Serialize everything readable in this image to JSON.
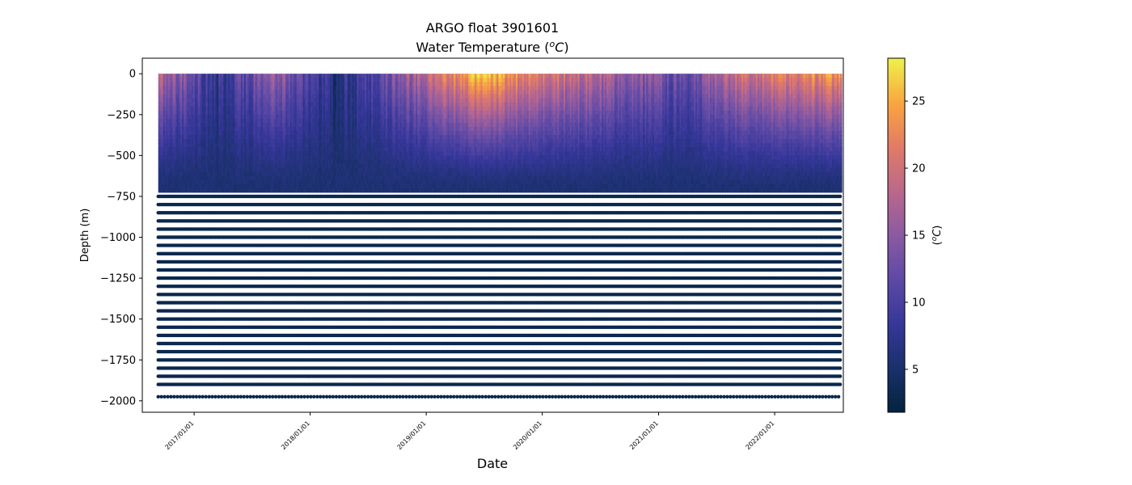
{
  "chart_data": {
    "type": "scatter",
    "title_line1": "ARGO float 3901601",
    "title_line2_prefix": "Water Temperature (",
    "title_line2_sup": "o",
    "title_line2_unit": "C",
    "title_line2_suffix": ")",
    "xlabel": "Date",
    "ylabel": "Depth (m)",
    "colorbar_label_prefix": "(",
    "colorbar_label_sup": "o",
    "colorbar_label_unit": "C",
    "colorbar_label_suffix": ")",
    "x_range": [
      "2016-07-22",
      "2022-08-05"
    ],
    "x_ticks": [
      "2017/01/01",
      "2018/01/01",
      "2019/01/01",
      "2020/01/01",
      "2021/01/01",
      "2022/01/01"
    ],
    "y_range": [
      -2070,
      95
    ],
    "y_ticks": [
      0,
      -250,
      -500,
      -750,
      -1000,
      -1250,
      -1500,
      -1750,
      -2000
    ],
    "y_tick_labels": [
      "0",
      "−250",
      "−500",
      "−750",
      "−1000",
      "−1250",
      "−1500",
      "−1750",
      "−2000"
    ],
    "colorbar_range": [
      1.8,
      28.2
    ],
    "colorbar_ticks": [
      5,
      10,
      15,
      20,
      25
    ],
    "colormap": "thermal",
    "profile_start": "2016-09-10",
    "profile_end": "2022-07-28",
    "profile_interval_days": 5,
    "depth_levels_dense_bottom": -700,
    "depth_levels_deep_spacing": 50,
    "deepest_depth": -1975,
    "surface_temperature_by_year": [
      {
        "date": "2016-09",
        "value": 18
      },
      {
        "date": "2017-03",
        "value": 8
      },
      {
        "date": "2017-09",
        "value": 16
      },
      {
        "date": "2018-03",
        "value": 6
      },
      {
        "date": "2018-09",
        "value": 14
      },
      {
        "date": "2019-06",
        "value": 26
      },
      {
        "date": "2019-12",
        "value": 21
      },
      {
        "date": "2020-06",
        "value": 18
      },
      {
        "date": "2021-03",
        "value": 12
      },
      {
        "date": "2021-09",
        "value": 20
      },
      {
        "date": "2022-07",
        "value": 23
      }
    ],
    "deep_temperature": 3.5,
    "grid": false
  }
}
